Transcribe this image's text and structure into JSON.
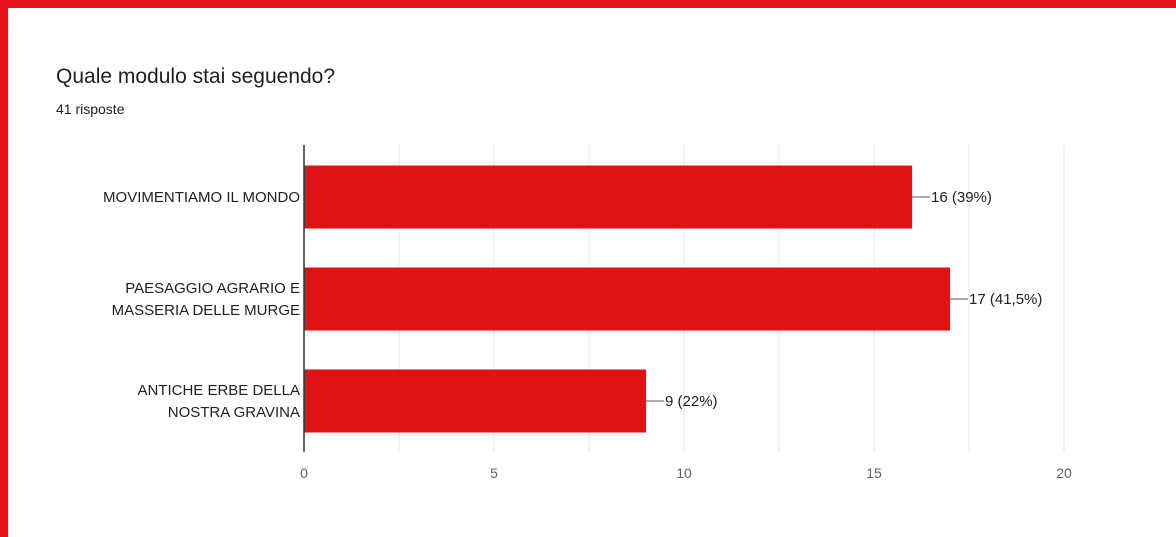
{
  "title": "Quale modulo stai seguendo?",
  "subtitle": "41 risposte",
  "colors": {
    "bar": "#e01214",
    "frame": "#e8141b",
    "grid": "#e6e6e6",
    "axis": "#333333"
  },
  "chart_data": {
    "type": "bar",
    "orientation": "horizontal",
    "categories": [
      [
        "MOVIMENTIAMO IL MONDO"
      ],
      [
        "PAESAGGIO AGRARIO E",
        "MASSERIA DELLE MURGE"
      ],
      [
        "ANTICHE ERBE DELLA",
        "NOSTRA GRAVINA"
      ]
    ],
    "values": [
      16,
      17,
      9
    ],
    "data_labels": [
      "16 (39%)",
      "17 (41,5%)",
      "9 (22%)"
    ],
    "xlim": [
      0,
      20
    ],
    "xticks": [
      0,
      5,
      10,
      15,
      20
    ],
    "xtick_labels": [
      "0",
      "5",
      "10",
      "15",
      "20"
    ],
    "grid": true,
    "legend": "none"
  }
}
